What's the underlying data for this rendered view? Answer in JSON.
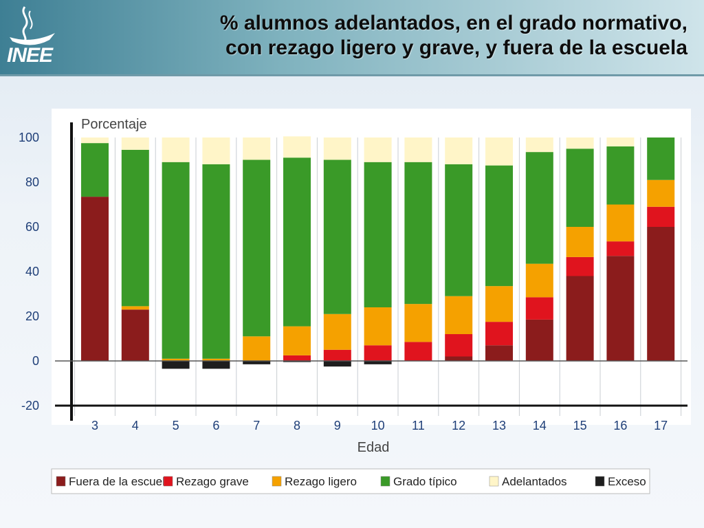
{
  "header": {
    "title_line1": "% alumnos adelantados, en el grado normativo,",
    "title_line2": "con rezago ligero y grave, y fuera de la escuela",
    "logo_text": "INEE"
  },
  "chart_data": {
    "type": "bar",
    "stacked": true,
    "title": "% alumnos adelantados, en el grado normativo, con rezago ligero y grave, y fuera de la escuela",
    "ylabel": "Porcentaje",
    "xlabel": "Edad",
    "ylim": [
      -20,
      100
    ],
    "yticks": [
      100,
      80,
      60,
      40,
      20,
      0,
      -20
    ],
    "grid": false,
    "legend_position": "bottom",
    "categories": [
      "3",
      "4",
      "5",
      "6",
      "7",
      "8",
      "9",
      "10",
      "11",
      "12",
      "13",
      "14",
      "15",
      "16",
      "17"
    ],
    "series": [
      {
        "name": "Fuera de la escuela",
        "color": "#8b1c1c",
        "values": [
          73.5,
          23,
          0,
          0,
          0,
          0,
          0,
          0,
          0,
          2,
          7,
          18.5,
          38,
          47,
          60
        ]
      },
      {
        "name": "Rezago grave",
        "color": "#e0141e",
        "values": [
          0,
          0,
          0,
          0,
          0,
          2.5,
          5,
          7,
          8.5,
          10,
          10.5,
          10,
          8.5,
          6.5,
          9
        ]
      },
      {
        "name": "Rezago ligero",
        "color": "#f5a100",
        "values": [
          0,
          1.5,
          1,
          1,
          11,
          13,
          16,
          17,
          17,
          17,
          16,
          15,
          13.5,
          16.5,
          12
        ]
      },
      {
        "name": "Grado típico",
        "color": "#3a9a28",
        "values": [
          24,
          70,
          88,
          87,
          79,
          75.5,
          69,
          65,
          63.5,
          59,
          54,
          50,
          35,
          26,
          19
        ]
      },
      {
        "name": "Adelantados",
        "color": "#fff5c8",
        "values": [
          2.5,
          5.5,
          11,
          12,
          10,
          9.5,
          10,
          11,
          11,
          12,
          12.5,
          6.5,
          5,
          4,
          0
        ]
      },
      {
        "name": "Exceso",
        "color": "#1e1e1e",
        "values": [
          0,
          0,
          -3.5,
          -3.5,
          -1.5,
          -0.5,
          -2.5,
          -1.5,
          0,
          0,
          0,
          0,
          0,
          0,
          0
        ]
      }
    ]
  }
}
